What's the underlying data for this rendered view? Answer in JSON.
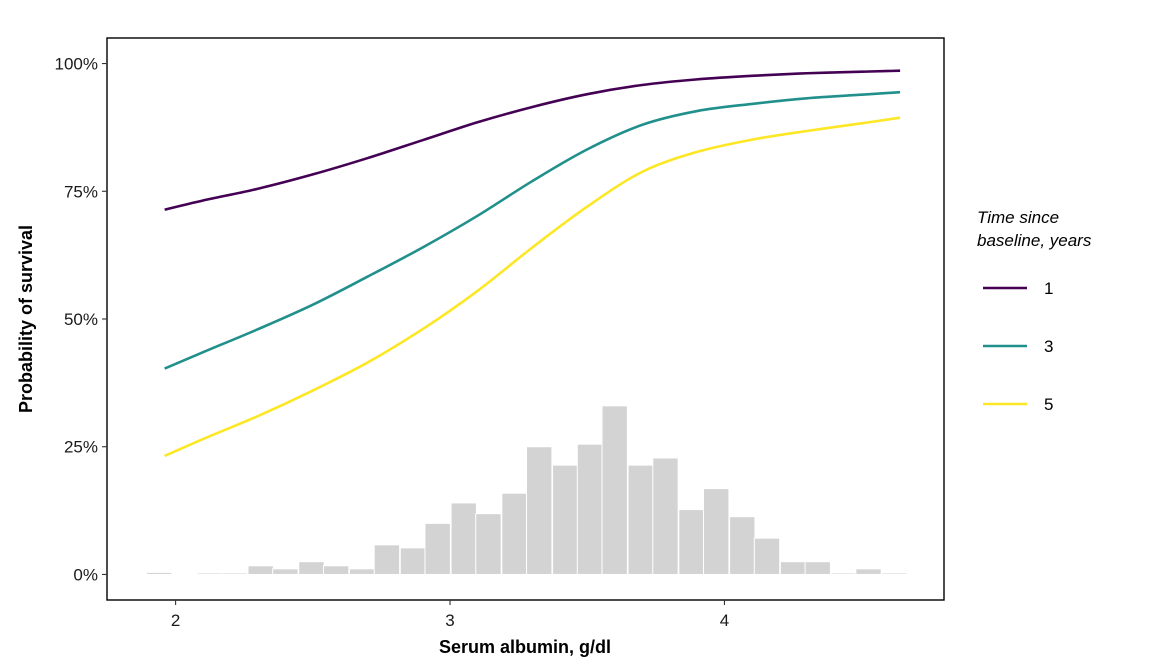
{
  "chart_data": {
    "type": "line",
    "xlabel": "Serum albumin, g/dl",
    "ylabel": "Probability of survival",
    "xlim": [
      1.75,
      4.8
    ],
    "ylim": [
      -0.05,
      1.05
    ],
    "x_ticks": [
      2,
      3,
      4
    ],
    "x_tick_labels": [
      "2",
      "3",
      "4"
    ],
    "y_ticks": [
      0,
      0.25,
      0.5,
      0.75,
      1.0
    ],
    "y_tick_labels": [
      "0%",
      "25%",
      "50%",
      "75%",
      "100%"
    ],
    "grid": false,
    "legend": {
      "title_line1": "Time since",
      "title_line2": "baseline, years",
      "position": "right"
    },
    "series": [
      {
        "name": "1",
        "color": "#440154",
        "x": [
          1.96,
          2.1,
          2.3,
          2.5,
          2.7,
          2.9,
          3.1,
          3.3,
          3.5,
          3.7,
          3.9,
          4.1,
          4.3,
          4.5,
          4.64
        ],
        "y": [
          0.714,
          0.732,
          0.755,
          0.783,
          0.815,
          0.85,
          0.885,
          0.915,
          0.94,
          0.958,
          0.969,
          0.976,
          0.981,
          0.984,
          0.986
        ]
      },
      {
        "name": "3",
        "color": "#21908C",
        "x": [
          1.96,
          2.1,
          2.3,
          2.5,
          2.7,
          2.9,
          3.1,
          3.3,
          3.5,
          3.7,
          3.9,
          4.1,
          4.3,
          4.5,
          4.64
        ],
        "y": [
          0.403,
          0.435,
          0.48,
          0.528,
          0.583,
          0.64,
          0.702,
          0.77,
          0.832,
          0.88,
          0.907,
          0.921,
          0.932,
          0.939,
          0.944
        ]
      },
      {
        "name": "5",
        "color": "#FDE725",
        "x": [
          1.96,
          2.1,
          2.3,
          2.5,
          2.7,
          2.9,
          3.1,
          3.3,
          3.5,
          3.7,
          3.9,
          4.1,
          4.3,
          4.5,
          4.64
        ],
        "y": [
          0.232,
          0.265,
          0.31,
          0.36,
          0.415,
          0.48,
          0.555,
          0.64,
          0.72,
          0.788,
          0.827,
          0.851,
          0.868,
          0.883,
          0.894
        ]
      }
    ],
    "histogram": {
      "color": "#D3D3D3",
      "bin_width": 0.0925,
      "bin_centers": [
        1.94,
        2.125,
        2.215,
        2.31,
        2.4,
        2.495,
        2.585,
        2.68,
        2.77,
        2.865,
        2.955,
        3.05,
        3.14,
        3.235,
        3.325,
        3.42,
        3.51,
        3.6,
        3.695,
        3.785,
        3.88,
        3.97,
        4.065,
        4.155,
        4.25,
        4.34,
        4.435,
        4.525,
        4.62
      ],
      "heights": [
        0.004,
        0.003,
        0.003,
        0.017,
        0.011,
        0.025,
        0.017,
        0.011,
        0.058,
        0.052,
        0.1,
        0.14,
        0.119,
        0.159,
        0.25,
        0.214,
        0.255,
        0.33,
        0.214,
        0.228,
        0.127,
        0.168,
        0.113,
        0.071,
        0.025,
        0.025,
        0.003,
        0.011,
        0.003
      ]
    }
  }
}
